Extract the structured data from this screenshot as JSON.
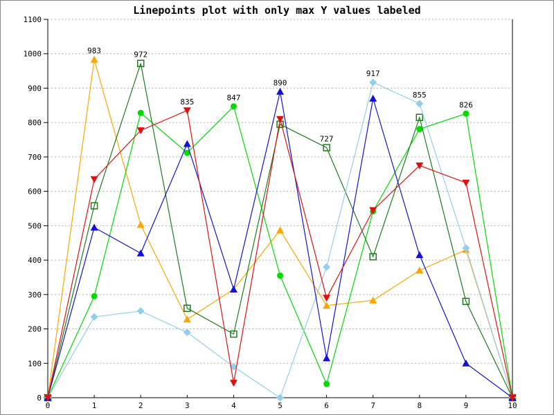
{
  "frame": {
    "background": "#ffffff",
    "border_color": "#888888",
    "grid_color": "#b0b0b0",
    "axis_color": "#000000",
    "label_color": "#000000"
  },
  "chart_data": {
    "type": "line",
    "title": "Linepoints plot with only max Y values labeled",
    "xlabel": "",
    "ylabel": "",
    "xlim": [
      0,
      10
    ],
    "ylim": [
      0,
      1100
    ],
    "x_ticks": [
      0,
      1,
      2,
      3,
      4,
      5,
      6,
      7,
      8,
      9,
      10
    ],
    "y_ticks": [
      0,
      100,
      200,
      300,
      400,
      500,
      600,
      700,
      800,
      900,
      1000,
      1100
    ],
    "grid": "horizontal-dotted",
    "legend": "none",
    "label_rule": "only the maximum y value at each x position is labeled",
    "x": [
      0,
      1,
      2,
      3,
      4,
      5,
      6,
      7,
      8,
      9,
      10
    ],
    "series": [
      {
        "name": "orange-series",
        "color": "#FFA500",
        "marker": "triangle-up",
        "values": [
          0,
          983,
          503,
          228,
          315,
          487,
          268,
          283,
          370,
          430,
          0
        ]
      },
      {
        "name": "bright-green-series",
        "color": "#00DC00",
        "marker": "circle",
        "values": [
          0,
          295,
          828,
          712,
          847,
          355,
          40,
          542,
          781,
          826,
          0
        ]
      },
      {
        "name": "forest-green-series",
        "color": "#1C7C1C",
        "marker": "square-open",
        "values": [
          0,
          558,
          972,
          260,
          185,
          795,
          727,
          410,
          815,
          280,
          0
        ]
      },
      {
        "name": "sky-blue-series",
        "color": "#92CFE8",
        "marker": "diamond",
        "values": [
          0,
          235,
          252,
          190,
          90,
          0,
          380,
          917,
          855,
          435,
          0
        ]
      },
      {
        "name": "blue-series",
        "color": "#1212D2",
        "marker": "triangle-up",
        "values": [
          0,
          495,
          420,
          738,
          315,
          890,
          115,
          870,
          415,
          100,
          0
        ]
      },
      {
        "name": "red-series",
        "color": "#E01010",
        "marker": "triangle-down",
        "values": [
          0,
          635,
          777,
          835,
          43,
          810,
          290,
          545,
          675,
          625,
          0
        ]
      }
    ],
    "labeled_max_points": [
      {
        "x": 1,
        "y": 983,
        "label": "983",
        "series": "orange-series"
      },
      {
        "x": 2,
        "y": 972,
        "label": "972",
        "series": "forest-green-series"
      },
      {
        "x": 3,
        "y": 835,
        "label": "835",
        "series": "red-series"
      },
      {
        "x": 4,
        "y": 847,
        "label": "847",
        "series": "bright-green-series"
      },
      {
        "x": 5,
        "y": 890,
        "label": "890",
        "series": "blue-series"
      },
      {
        "x": 6,
        "y": 727,
        "label": "727",
        "series": "forest-green-series"
      },
      {
        "x": 7,
        "y": 917,
        "label": "917",
        "series": "sky-blue-series"
      },
      {
        "x": 8,
        "y": 855,
        "label": "855",
        "series": "sky-blue-series"
      },
      {
        "x": 9,
        "y": 826,
        "label": "826",
        "series": "bright-green-series"
      }
    ]
  }
}
